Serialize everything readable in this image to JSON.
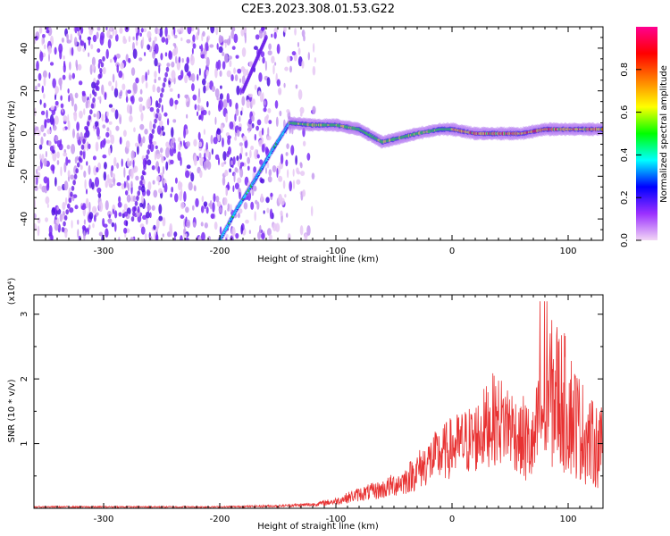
{
  "title": "C2E3.2023.308.01.53.G22",
  "colors": {
    "frame": "#000000",
    "spectrum_low": "#7a3cf0",
    "snr_line": "#e83232"
  },
  "chart_data": [
    {
      "type": "heatmap",
      "xlabel": "Height of straight line (km)",
      "ylabel": "Frequency (Hz)",
      "xlim": [
        -360,
        130
      ],
      "ylim": [
        -50,
        50
      ],
      "x_ticks": [
        -300,
        -200,
        -100,
        0,
        100
      ],
      "y_ticks": [
        -40,
        -20,
        0,
        20,
        40
      ],
      "colorbar": {
        "label": "Normalized spectral amplitude",
        "range": [
          0,
          1
        ],
        "ticks": [
          "0.0",
          "0.2",
          "0.4",
          "0.6",
          "0.8"
        ],
        "tick_values": [
          0.0,
          0.2,
          0.4,
          0.6,
          0.8
        ],
        "colors": [
          "#f2d6f5",
          "#9b30ff",
          "#0000ff",
          "#00ffff",
          "#00ff00",
          "#ffff00",
          "#ff8000",
          "#ff0000",
          "#ff0090"
        ]
      },
      "noise_region": {
        "x_range": [
          -360,
          -130
        ],
        "freq_range": [
          -50,
          50
        ]
      },
      "signal_track": [
        {
          "x": -200,
          "freq": -50
        },
        {
          "x": -185,
          "freq": -35
        },
        {
          "x": -170,
          "freq": -22
        },
        {
          "x": -155,
          "freq": -8
        },
        {
          "x": -140,
          "freq": 5
        },
        {
          "x": -120,
          "freq": 4
        },
        {
          "x": -100,
          "freq": 4
        },
        {
          "x": -80,
          "freq": 2
        },
        {
          "x": -60,
          "freq": -4
        },
        {
          "x": -45,
          "freq": -2
        },
        {
          "x": -30,
          "freq": 0
        },
        {
          "x": -10,
          "freq": 2
        },
        {
          "x": 0,
          "freq": 2
        },
        {
          "x": 20,
          "freq": 0
        },
        {
          "x": 40,
          "freq": 0
        },
        {
          "x": 60,
          "freq": 0
        },
        {
          "x": 80,
          "freq": 2
        },
        {
          "x": 100,
          "freq": 2
        },
        {
          "x": 130,
          "freq": 2
        }
      ]
    },
    {
      "type": "line",
      "xlabel": "Height of straight line (km)",
      "ylabel": "SNR (10 * v/v)",
      "scale_label": "(x10⁴)",
      "xlim": [
        -360,
        130
      ],
      "ylim": [
        0,
        3.3
      ],
      "x_ticks": [
        -300,
        -200,
        -100,
        0,
        100
      ],
      "y_ticks": [
        1,
        2,
        3
      ],
      "series": [
        {
          "color": "#e83232",
          "x": [
            -360,
            -300,
            -200,
            -150,
            -120,
            -100,
            -80,
            -60,
            -40,
            -20,
            0,
            20,
            35,
            50,
            60,
            70,
            80,
            90,
            100,
            110,
            120,
            130
          ],
          "y": [
            0.03,
            0.03,
            0.03,
            0.05,
            0.08,
            0.15,
            0.3,
            0.4,
            0.6,
            1.0,
            1.3,
            1.5,
            1.9,
            1.8,
            1.4,
            1.2,
            2.2,
            2.3,
            2.0,
            1.6,
            1.3,
            1.2
          ]
        }
      ]
    }
  ]
}
